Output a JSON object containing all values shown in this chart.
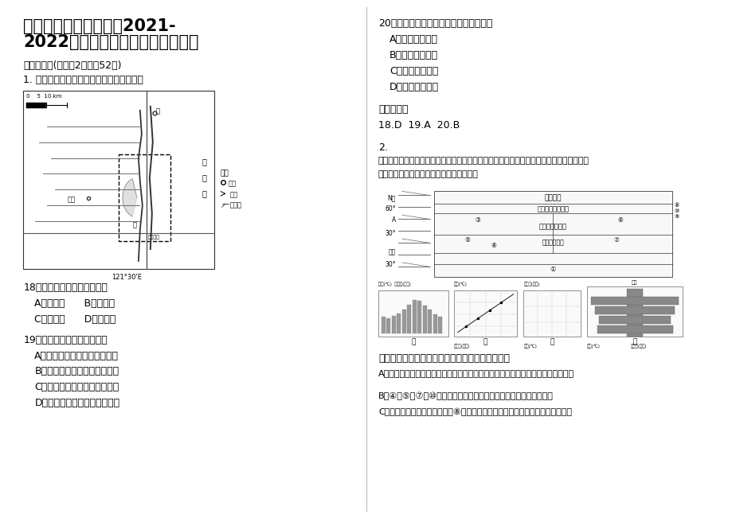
{
  "bg_color": "#ffffff",
  "title_line1": "安徽省安庆市大闸中学2021-",
  "title_line2": "2022学年高三地理联考试题含解析",
  "section1": "一、选择题(每小题2分，共52分)",
  "q1_intro": "1. 右图是我国台湾省部分地区水系分布图。",
  "q18": "18．图中虚线范围内的地貌是",
  "q18ab": "A．风蚀谷      B．冰蚀谷",
  "q18cd": "C．张裂谷      D．断层谷",
  "q19": "19．虚线范围内的地势特征是",
  "q19a": "A．花莲溪西侧平缓，东侧陡峻",
  "q19b": "B．花莲溪西侧陡峻，东侧平缓",
  "q19c": "C．大富以南，北部高，南部低",
  "q19d": "D．大富以南，北部低，南部高",
  "q20": "20．下列关于图示地区的叙述，正确的是",
  "q20a": "A．内河航运便利",
  "q20b": "B．渔业资源丰富",
  "q20c": "C．建港条件优越",
  "q20d": "D．利于海盐晒制",
  "answer_title": "参考答案：",
  "answer": "18.D  19.A  20.B",
  "q2_label": "2.",
  "q2_line1": "下图为气候类型分布模式图，图的左侧是某季节影响气候形成的气压带、风带位置示意图；",
  "q2_line2": "模式图下方为四地的气候资料图，读图回答",
  "q_about": "关于图中各种气候及对应自然带的叙述，正确的是",
  "qa": "A．根据图中气压带和风带的位置，此季节非州南端开普敦的气候特点是炎热干燥。",
  "qb": "B．④一⑤，⑦一⑩对应自然带的变化体现了从沿海向内陆的地域分异",
  "qc": "C．则若该图表示亚欧大陆，则⑧附近是著名的北海渔场，形成原因是寒暖流交汇",
  "map_legend_title": "图例",
  "map_legend_town": "城镇",
  "map_legend_river": "河流",
  "map_legend_fan": "冲积扇",
  "map_coord": "121°30'E",
  "map_scale": "0    5  10 km",
  "map_tai": [
    "太",
    "平",
    "洋"
  ],
  "map_hua": "花",
  "map_dafu": "大富",
  "map_ping": "萍",
  "climate_zones": [
    "极地气候",
    "亚寒带大陆性气候",
    "温带大陆性气候",
    "热带草原气候"
  ],
  "climate_zone1": "①",
  "climate_num": [
    "③",
    "⑥",
    "⑤",
    "④",
    "⑦"
  ],
  "left_labels": [
    "N极",
    "60°",
    "A",
    "30°",
    "赤道",
    "30°"
  ],
  "chart_labels": [
    "甲",
    "乙",
    "丙",
    "丁"
  ],
  "chart_xlabel1": "气温(℃)    降水量(毫米)",
  "chart_xlabel2": "气温(℃)"
}
